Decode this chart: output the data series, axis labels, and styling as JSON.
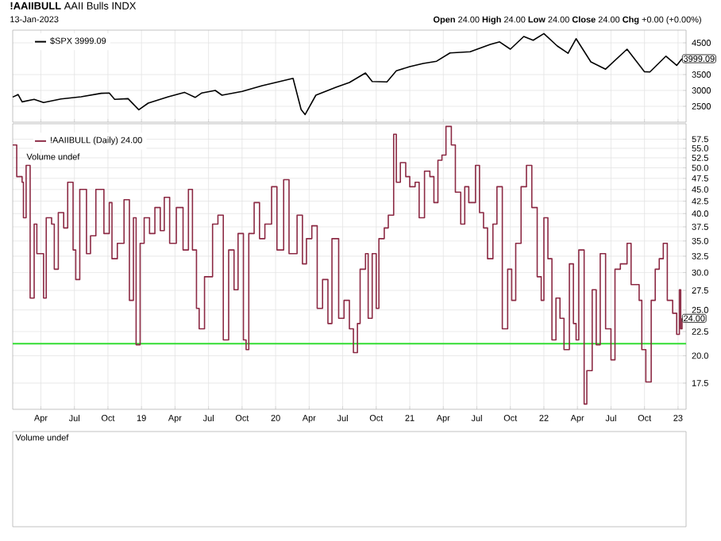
{
  "chart_data": [
    {
      "type": "line",
      "title": "**!AAIIBULL** AAII Bulls INDX",
      "subtitle": "13-Jan-2023",
      "annotations": [
        "**Open** 24.00 **High** 24.00 **Low** 24.00 **Close** 24.00 **Chg** +0.00 (+0.00%)",
        {
          "text": "3999.09",
          "x": 2023.03,
          "y": 3999.09
        }
      ],
      "x": [
        2018.04,
        2018.08,
        2018.11,
        2018.2,
        2018.27,
        2018.4,
        2018.55,
        2018.7,
        2018.76,
        2018.8,
        2018.9,
        2018.98,
        2019.05,
        2019.2,
        2019.32,
        2019.4,
        2019.45,
        2019.55,
        2019.6,
        2019.75,
        2019.9,
        2020.0,
        2020.13,
        2020.19,
        2020.22,
        2020.3,
        2020.45,
        2020.55,
        2020.67,
        2020.72,
        2020.83,
        2020.9,
        2021.0,
        2021.1,
        2021.2,
        2021.3,
        2021.45,
        2021.6,
        2021.67,
        2021.75,
        2021.85,
        2021.92,
        2022.0,
        2022.1,
        2022.18,
        2022.24,
        2022.35,
        2022.46,
        2022.62,
        2022.75,
        2022.79,
        2022.91,
        2022.99,
        2023.03
      ],
      "series": [
        {
          "name": "$SPX 3999.09",
          "color": "#000000",
          "values": [
            2790,
            2870,
            2640,
            2720,
            2620,
            2730,
            2800,
            2910,
            2920,
            2720,
            2740,
            2390,
            2600,
            2800,
            2940,
            2780,
            2920,
            3000,
            2850,
            2970,
            3150,
            3250,
            3380,
            2400,
            2240,
            2850,
            3100,
            3250,
            3550,
            3280,
            3270,
            3620,
            3750,
            3850,
            3920,
            4180,
            4220,
            4450,
            4530,
            4300,
            4700,
            4580,
            4790,
            4400,
            4170,
            4630,
            3900,
            3670,
            4300,
            3590,
            3580,
            4080,
            3790,
            3999.09
          ]
        }
      ],
      "xlim": [
        2018.04,
        2023.06
      ],
      "ylim": [
        2000,
        4900
      ],
      "xticks": [
        {
          "value": 2018.25,
          "label": null
        },
        {
          "value": 2018.5,
          "label": null
        },
        {
          "value": 2018.75,
          "label": null
        },
        {
          "value": 2019,
          "label": null
        },
        {
          "value": 2019.25,
          "label": null
        },
        {
          "value": 2019.5,
          "label": null
        },
        {
          "value": 2019.75,
          "label": null
        },
        {
          "value": 2020,
          "label": null
        },
        {
          "value": 2020.25,
          "label": null
        },
        {
          "value": 2020.5,
          "label": null
        },
        {
          "value": 2020.75,
          "label": null
        },
        {
          "value": 2021,
          "label": null
        },
        {
          "value": 2021.25,
          "label": null
        },
        {
          "value": 2021.5,
          "label": null
        },
        {
          "value": 2021.75,
          "label": null
        },
        {
          "value": 2022,
          "label": null
        },
        {
          "value": 2022.25,
          "label": null
        },
        {
          "value": 2022.5,
          "label": null
        },
        {
          "value": 2022.75,
          "label": null
        },
        {
          "value": 2023,
          "label": null
        }
      ],
      "yticks": [
        2500,
        3000,
        3500,
        4500
      ],
      "grid": true,
      "legend": "top left",
      "tick_labels": "y"
    },
    {
      "type": "step",
      "annotations": [
        "Volume undef",
        {
          "text": "24.00",
          "x": 2023.03,
          "y": 24
        }
      ],
      "x": [
        2018.04,
        2018.07,
        2018.11,
        2018.12,
        2018.14,
        2018.17,
        2018.2,
        2018.22,
        2018.27,
        2018.29,
        2018.33,
        2018.35,
        2018.38,
        2018.42,
        2018.45,
        2018.49,
        2018.51,
        2018.54,
        2018.59,
        2018.62,
        2018.66,
        2018.72,
        2018.76,
        2018.78,
        2018.82,
        2018.87,
        2018.91,
        2018.94,
        2018.96,
        2018.99,
        2019.02,
        2019.06,
        2019.1,
        2019.14,
        2019.17,
        2019.21,
        2019.26,
        2019.31,
        2019.35,
        2019.38,
        2019.41,
        2019.43,
        2019.47,
        2019.53,
        2019.57,
        2019.61,
        2019.65,
        2019.69,
        2019.72,
        2019.76,
        2019.78,
        2019.8,
        2019.84,
        2019.88,
        2019.92,
        2019.97,
        2020.01,
        2020.06,
        2020.1,
        2020.16,
        2020.2,
        2020.23,
        2020.27,
        2020.31,
        2020.35,
        2020.39,
        2020.42,
        2020.47,
        2020.51,
        2020.55,
        2020.58,
        2020.61,
        2020.63,
        2020.67,
        2020.69,
        2020.72,
        2020.75,
        2020.77,
        2020.81,
        2020.84,
        2020.88,
        2020.9,
        2020.93,
        2020.97,
        2021.0,
        2021.04,
        2021.07,
        2021.11,
        2021.15,
        2021.18,
        2021.21,
        2021.24,
        2021.27,
        2021.31,
        2021.34,
        2021.38,
        2021.41,
        2021.44,
        2021.49,
        2021.52,
        2021.55,
        2021.58,
        2021.62,
        2021.65,
        2021.69,
        2021.73,
        2021.76,
        2021.79,
        2021.83,
        2021.87,
        2021.91,
        2021.95,
        2021.98,
        2022.0,
        2022.03,
        2022.06,
        2022.09,
        2022.12,
        2022.15,
        2022.19,
        2022.22,
        2022.24,
        2022.26,
        2022.3,
        2022.32,
        2022.36,
        2022.39,
        2022.42,
        2022.46,
        2022.5,
        2022.53,
        2022.57,
        2022.62,
        2022.65,
        2022.71,
        2022.73,
        2022.76,
        2022.8,
        2022.83,
        2022.86,
        2022.89,
        2022.92,
        2022.96,
        2022.99,
        2023.01,
        2023.02,
        2023.03
      ],
      "series": [
        {
          "name": "!AAIIBULL (Daily) 24.00",
          "color": "#8c2a44",
          "values": [
            55.9,
            47.9,
            46.6,
            39.2,
            50.6,
            26.5,
            38.0,
            32.9,
            26.5,
            39.2,
            38.0,
            30.5,
            40.2,
            37.3,
            46.6,
            33.5,
            29.0,
            45.0,
            32.9,
            35.9,
            45.0,
            36.3,
            42.2,
            32.1,
            34.6,
            42.8,
            26.2,
            39.2,
            21.1,
            34.6,
            39.2,
            36.3,
            41.2,
            36.8,
            43.3,
            34.6,
            41.2,
            33.5,
            45.0,
            33.5,
            25.2,
            22.8,
            29.4,
            38.0,
            39.7,
            21.6,
            33.5,
            27.6,
            36.3,
            21.6,
            20.6,
            36.3,
            42.2,
            35.4,
            38.0,
            45.6,
            33.5,
            47.2,
            32.9,
            39.7,
            31.3,
            35.4,
            37.7,
            25.2,
            29.0,
            23.4,
            35.4,
            24.0,
            26.2,
            22.8,
            20.3,
            23.4,
            30.5,
            32.9,
            24.0,
            32.9,
            25.2,
            35.4,
            37.3,
            39.7,
            58.9,
            46.6,
            51.3,
            47.9,
            45.6,
            46.6,
            39.2,
            49.2,
            47.9,
            42.2,
            51.9,
            53.2,
            61.2,
            55.9,
            44.4,
            38.0,
            45.6,
            42.2,
            50.6,
            40.2,
            37.3,
            32.1,
            38.0,
            45.6,
            22.8,
            30.5,
            26.2,
            34.6,
            45.6,
            50.6,
            41.2,
            29.4,
            26.2,
            39.2,
            32.1,
            21.6,
            26.5,
            24.0,
            20.6,
            31.3,
            23.4,
            21.6,
            33.5,
            15.8,
            18.6,
            27.6,
            21.1,
            32.9,
            22.8,
            19.6,
            30.5,
            31.3,
            34.6,
            28.3,
            26.2,
            20.6,
            17.6,
            26.2,
            30.5,
            32.1,
            34.6,
            26.2,
            24.6,
            22.2,
            27.6,
            22.8,
            24.0
          ]
        }
      ],
      "xlim": [
        2018.04,
        2023.06
      ],
      "ylim": [
        15.4,
        62
      ],
      "xticks": [
        {
          "value": 2018.25,
          "label": "Apr"
        },
        {
          "value": 2018.5,
          "label": "Jul"
        },
        {
          "value": 2018.75,
          "label": "Oct"
        },
        {
          "value": 2019,
          "label": "19"
        },
        {
          "value": 2019.25,
          "label": "Apr"
        },
        {
          "value": 2019.5,
          "label": "Jul"
        },
        {
          "value": 2019.75,
          "label": "Oct"
        },
        {
          "value": 2020,
          "label": "20"
        },
        {
          "value": 2020.25,
          "label": "Apr"
        },
        {
          "value": 2020.5,
          "label": "Jul"
        },
        {
          "value": 2020.75,
          "label": "Oct"
        },
        {
          "value": 2021,
          "label": "21"
        },
        {
          "value": 2021.25,
          "label": "Apr"
        },
        {
          "value": 2021.5,
          "label": "Jul"
        },
        {
          "value": 2021.75,
          "label": "Oct"
        },
        {
          "value": 2022,
          "label": "22"
        },
        {
          "value": 2022.25,
          "label": "Apr"
        },
        {
          "value": 2022.5,
          "label": "Jul"
        },
        {
          "value": 2022.75,
          "label": "Oct"
        },
        {
          "value": 2023,
          "label": "23"
        }
      ],
      "yticks": [
        17.5,
        {
          "value": 20,
          "label": "20.0"
        },
        22.5,
        {
          "value": 25,
          "label": "25.0"
        },
        27.5,
        {
          "value": 30,
          "label": "30.0"
        },
        32.5,
        {
          "value": 35,
          "label": "35.0"
        },
        37.5,
        {
          "value": 40,
          "label": "40.0"
        },
        42.5,
        {
          "value": 45,
          "label": "45.0"
        },
        47.5,
        {
          "value": 50,
          "label": "50.0"
        },
        52.5,
        {
          "value": 55,
          "label": "55.0"
        },
        57.5
      ],
      "log": "y",
      "grid": true,
      "legend": "top left",
      "ref_lines": [
        {
          "axis": "y",
          "value": 21.2,
          "color": "#33dd33"
        }
      ]
    },
    {
      "type": "other",
      "title": "Volume undef"
    }
  ]
}
